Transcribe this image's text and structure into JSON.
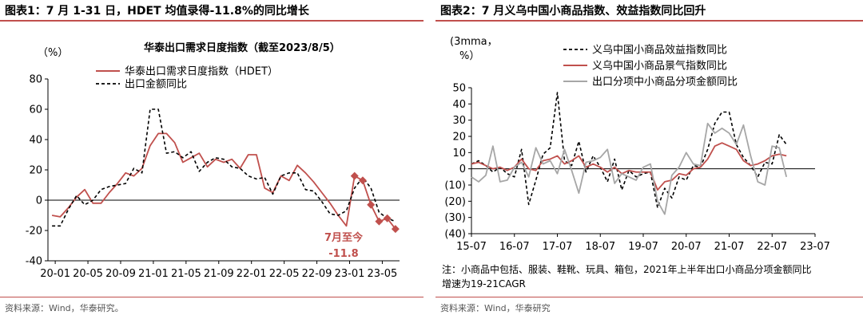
{
  "left": {
    "fig_title": "图表1：7 月 1-31 日，HDET 均值录得-11.8%的同比增长",
    "source": "资料来源：Wind，华泰研究。",
    "chart_data": {
      "type": "line",
      "title": "华泰出口需求日度指数（截至2023/8/5）",
      "ylabel": "（%）",
      "xlabel": "",
      "ylim": [
        -40,
        80
      ],
      "yticks": [
        "80",
        "60",
        "40",
        "20",
        "0",
        "-20",
        "-40"
      ],
      "ytick_values": [
        80,
        60,
        40,
        20,
        0,
        -20,
        -40
      ],
      "xticks": [
        "20-01",
        "20-05",
        "20-09",
        "21-01",
        "21-05",
        "21-09",
        "22-01",
        "22-05",
        "22-09",
        "23-01",
        "23-05"
      ],
      "x_start": "2020-01",
      "series": [
        {
          "name": "华泰出口需求日度指数（HDET）",
          "color": "#c0504d",
          "style": "solid",
          "points": [
            [
              "2020-01",
              -10
            ],
            [
              "2020-02",
              -11
            ],
            [
              "2020-03",
              -5
            ],
            [
              "2020-04",
              2
            ],
            [
              "2020-05",
              7
            ],
            [
              "2020-06",
              -2
            ],
            [
              "2020-07",
              -2
            ],
            [
              "2020-08",
              5
            ],
            [
              "2020-09",
              11
            ],
            [
              "2020-10",
              18
            ],
            [
              "2020-11",
              16
            ],
            [
              "2020-12",
              21
            ],
            [
              "2021-01",
              36
            ],
            [
              "2021-02",
              44
            ],
            [
              "2021-03",
              44
            ],
            [
              "2021-04",
              38
            ],
            [
              "2021-05",
              25
            ],
            [
              "2021-06",
              28
            ],
            [
              "2021-07",
              31
            ],
            [
              "2021-08",
              22
            ],
            [
              "2021-09",
              27
            ],
            [
              "2021-10",
              25
            ],
            [
              "2021-11",
              27
            ],
            [
              "2021-12",
              21
            ],
            [
              "2022-01",
              30
            ],
            [
              "2022-02",
              30
            ],
            [
              "2022-03",
              8
            ],
            [
              "2022-04",
              5
            ],
            [
              "2022-05",
              16
            ],
            [
              "2022-06",
              13
            ],
            [
              "2022-07",
              23
            ],
            [
              "2022-08",
              18
            ],
            [
              "2022-09",
              12
            ],
            [
              "2022-10",
              5
            ],
            [
              "2022-11",
              -2
            ],
            [
              "2022-12",
              -10
            ],
            [
              "2023-01",
              -17
            ],
            [
              "2023-02",
              16
            ],
            [
              "2023-03",
              13
            ],
            [
              "2023-04",
              -3
            ],
            [
              "2023-05",
              -14
            ],
            [
              "2023-06",
              -12
            ],
            [
              "2023-07",
              -19
            ]
          ]
        },
        {
          "name": "出口金额同比",
          "color": "#000000",
          "style": "dashed",
          "points": [
            [
              "2020-01",
              -17
            ],
            [
              "2020-02",
              -17
            ],
            [
              "2020-03",
              -6
            ],
            [
              "2020-04",
              3
            ],
            [
              "2020-05",
              -3
            ],
            [
              "2020-06",
              0
            ],
            [
              "2020-07",
              7
            ],
            [
              "2020-08",
              9
            ],
            [
              "2020-09",
              10
            ],
            [
              "2020-10",
              11
            ],
            [
              "2020-11",
              21
            ],
            [
              "2020-12",
              18
            ],
            [
              "2021-01",
              60
            ],
            [
              "2021-02",
              60
            ],
            [
              "2021-03",
              31
            ],
            [
              "2021-04",
              32
            ],
            [
              "2021-05",
              28
            ],
            [
              "2021-06",
              32
            ],
            [
              "2021-07",
              19
            ],
            [
              "2021-08",
              25
            ],
            [
              "2021-09",
              28
            ],
            [
              "2021-10",
              27
            ],
            [
              "2021-11",
              22
            ],
            [
              "2021-12",
              21
            ],
            [
              "2022-01",
              16
            ],
            [
              "2022-02",
              14
            ],
            [
              "2022-03",
              15
            ],
            [
              "2022-04",
              4
            ],
            [
              "2022-05",
              16
            ],
            [
              "2022-06",
              18
            ],
            [
              "2022-07",
              18
            ],
            [
              "2022-08",
              7
            ],
            [
              "2022-09",
              6
            ],
            [
              "2022-10",
              -1
            ],
            [
              "2022-11",
              -9
            ],
            [
              "2022-12",
              -10
            ],
            [
              "2023-01",
              -7
            ],
            [
              "2023-02",
              8
            ],
            [
              "2023-03",
              15
            ],
            [
              "2023-04",
              8
            ],
            [
              "2023-05",
              -8
            ],
            [
              "2023-06",
              -12
            ],
            [
              "2023-07",
              -14
            ]
          ]
        }
      ],
      "highlight_points": [
        [
          "2023-02",
          16
        ],
        [
          "2023-03",
          13
        ],
        [
          "2023-04",
          -3
        ],
        [
          "2023-05",
          -14
        ],
        [
          "2023-06",
          -12
        ],
        [
          "2023-07",
          -19
        ]
      ],
      "annotation": {
        "line1": "7月至今",
        "line2": "-11.8",
        "color": "#c0504d"
      },
      "legend_placement": "top"
    }
  },
  "right": {
    "fig_title": "图表2：7 月义乌中国小商品指数、效益指数同比回升",
    "source": "资料来源：Wind，华泰研究",
    "note": "注：小商品中包括、服装、鞋靴、玩具、箱包，2021年上半年出口小商品分项金额同比增速为19-21CAGR",
    "chart_data": {
      "type": "line",
      "ylabel_line1": "(3mma，",
      "ylabel_line2": "%）",
      "xlabel": "",
      "ylim": [
        -40,
        50
      ],
      "yticks": [
        "50",
        "40",
        "30",
        "20",
        "10",
        "0",
        "(10)",
        "(20)",
        "(30)",
        "(40)"
      ],
      "ytick_values": [
        50,
        40,
        30,
        20,
        10,
        0,
        -10,
        -20,
        -30,
        -40
      ],
      "xticks": [
        "15-07",
        "16-07",
        "17-07",
        "18-07",
        "19-07",
        "20-07",
        "21-07",
        "22-07",
        "23-07"
      ],
      "x_start": "2015-07",
      "series": [
        {
          "name": "义乌中国小商品效益指数同比",
          "color": "#000000",
          "style": "dashed",
          "points": [
            [
              "2015-07",
              3
            ],
            [
              "2015-09",
              5
            ],
            [
              "2015-11",
              2
            ],
            [
              "2016-01",
              -2
            ],
            [
              "2016-03",
              1
            ],
            [
              "2016-05",
              -3
            ],
            [
              "2016-07",
              -5
            ],
            [
              "2016-09",
              12
            ],
            [
              "2016-11",
              -22
            ],
            [
              "2017-01",
              -7
            ],
            [
              "2017-03",
              9
            ],
            [
              "2017-05",
              13
            ],
            [
              "2017-07",
              47
            ],
            [
              "2017-09",
              5
            ],
            [
              "2017-11",
              2
            ],
            [
              "2018-01",
              17
            ],
            [
              "2018-03",
              -2
            ],
            [
              "2018-05",
              8
            ],
            [
              "2018-07",
              1
            ],
            [
              "2018-09",
              -8
            ],
            [
              "2018-11",
              6
            ],
            [
              "2019-01",
              -13
            ],
            [
              "2019-03",
              -1
            ],
            [
              "2019-05",
              -5
            ],
            [
              "2019-07",
              -3
            ],
            [
              "2019-09",
              -2
            ],
            [
              "2019-11",
              -24
            ],
            [
              "2020-01",
              -12
            ],
            [
              "2020-03",
              -18
            ],
            [
              "2020-05",
              -5
            ],
            [
              "2020-07",
              -7
            ],
            [
              "2020-09",
              2
            ],
            [
              "2020-11",
              1
            ],
            [
              "2021-01",
              12
            ],
            [
              "2021-03",
              28
            ],
            [
              "2021-05",
              35
            ],
            [
              "2021-07",
              35
            ],
            [
              "2021-09",
              15
            ],
            [
              "2021-11",
              7
            ],
            [
              "2022-01",
              2
            ],
            [
              "2022-03",
              -5
            ],
            [
              "2022-05",
              4
            ],
            [
              "2022-07",
              3
            ],
            [
              "2022-09",
              21
            ],
            [
              "2022-11",
              15
            ]
          ]
        },
        {
          "name": "义乌中国小商品景气指数同比",
          "color": "#c0504d",
          "style": "solid",
          "points": [
            [
              "2015-07",
              3
            ],
            [
              "2015-09",
              4
            ],
            [
              "2015-11",
              2
            ],
            [
              "2016-01",
              0
            ],
            [
              "2016-03",
              1
            ],
            [
              "2016-05",
              -1
            ],
            [
              "2016-07",
              1
            ],
            [
              "2016-09",
              6
            ],
            [
              "2016-11",
              0
            ],
            [
              "2017-01",
              -1
            ],
            [
              "2017-03",
              5
            ],
            [
              "2017-05",
              6
            ],
            [
              "2017-07",
              8
            ],
            [
              "2017-09",
              3
            ],
            [
              "2017-11",
              5
            ],
            [
              "2018-01",
              8
            ],
            [
              "2018-03",
              1
            ],
            [
              "2018-05",
              3
            ],
            [
              "2018-07",
              1
            ],
            [
              "2018-09",
              -2
            ],
            [
              "2018-11",
              1
            ],
            [
              "2019-01",
              -3
            ],
            [
              "2019-03",
              -1
            ],
            [
              "2019-05",
              -2
            ],
            [
              "2019-07",
              -2
            ],
            [
              "2019-09",
              -2
            ],
            [
              "2019-11",
              -13
            ],
            [
              "2020-01",
              -8
            ],
            [
              "2020-03",
              -7
            ],
            [
              "2020-05",
              -3
            ],
            [
              "2020-07",
              -4
            ],
            [
              "2020-09",
              0
            ],
            [
              "2020-11",
              1
            ],
            [
              "2021-01",
              6
            ],
            [
              "2021-03",
              14
            ],
            [
              "2021-05",
              16
            ],
            [
              "2021-07",
              14
            ],
            [
              "2021-09",
              12
            ],
            [
              "2021-11",
              5
            ],
            [
              "2022-01",
              2
            ],
            [
              "2022-03",
              3
            ],
            [
              "2022-05",
              5
            ],
            [
              "2022-07",
              8
            ],
            [
              "2022-09",
              9
            ],
            [
              "2022-11",
              8
            ]
          ]
        },
        {
          "name": "出口分项中小商品分项金额同比",
          "color": "#a6a6a6",
          "style": "solid",
          "points": [
            [
              "2015-07",
              -5
            ],
            [
              "2015-09",
              -8
            ],
            [
              "2015-11",
              -4
            ],
            [
              "2016-01",
              14
            ],
            [
              "2016-03",
              -8
            ],
            [
              "2016-05",
              -7
            ],
            [
              "2016-07",
              1
            ],
            [
              "2016-09",
              4
            ],
            [
              "2016-11",
              -5
            ],
            [
              "2017-01",
              13
            ],
            [
              "2017-03",
              3
            ],
            [
              "2017-05",
              5
            ],
            [
              "2017-07",
              -3
            ],
            [
              "2017-09",
              12
            ],
            [
              "2017-11",
              -1
            ],
            [
              "2018-01",
              -15
            ],
            [
              "2018-03",
              4
            ],
            [
              "2018-05",
              5
            ],
            [
              "2018-07",
              7
            ],
            [
              "2018-09",
              12
            ],
            [
              "2018-11",
              -9
            ],
            [
              "2019-01",
              -3
            ],
            [
              "2019-03",
              -5
            ],
            [
              "2019-05",
              -7
            ],
            [
              "2019-07",
              1
            ],
            [
              "2019-09",
              3
            ],
            [
              "2019-11",
              -20
            ],
            [
              "2020-01",
              -28
            ],
            [
              "2020-03",
              -4
            ],
            [
              "2020-05",
              1
            ],
            [
              "2020-07",
              10
            ],
            [
              "2020-09",
              3
            ],
            [
              "2020-11",
              2
            ],
            [
              "2021-01",
              28
            ],
            [
              "2021-03",
              22
            ],
            [
              "2021-05",
              25
            ],
            [
              "2021-07",
              22
            ],
            [
              "2021-09",
              15
            ],
            [
              "2021-11",
              27
            ],
            [
              "2022-01",
              8
            ],
            [
              "2022-03",
              -8
            ],
            [
              "2022-05",
              -10
            ],
            [
              "2022-07",
              14
            ],
            [
              "2022-09",
              13
            ],
            [
              "2022-11",
              -5
            ]
          ]
        }
      ],
      "legend_placement": "top"
    }
  }
}
